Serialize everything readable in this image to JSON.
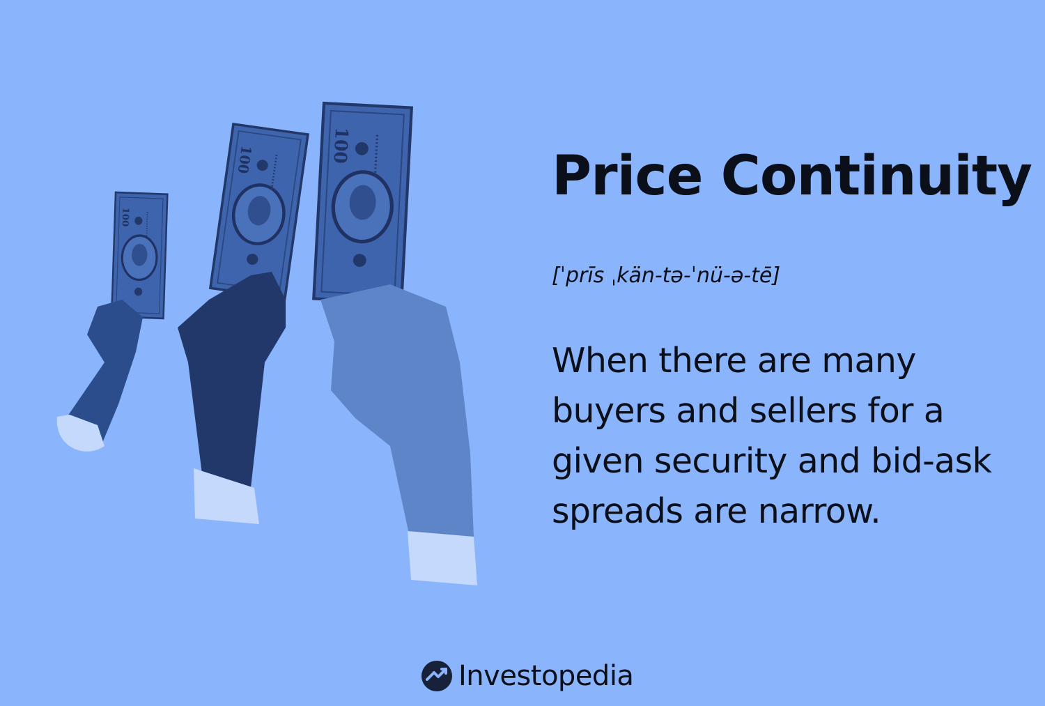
{
  "title": "Price Continuity",
  "pronunciation": "[ˈprīs ˌkän-tə-ˈnü-ə-tē]",
  "definition": "When there are many buyers and sellers for a given security and bid-ask spreads are narrow.",
  "brand": {
    "name": "Investopedia",
    "icon": "investopedia-logo-icon"
  },
  "illustration": {
    "icon": "hands-holding-banknotes-icon",
    "banknote_label": "100"
  },
  "colors": {
    "background": "#8ab4fb",
    "text": "#0b0f1a",
    "bill": "#3e64ad",
    "bill_dark": "#23386a",
    "hand_dark": "#23386a",
    "hand_mid": "#2c4d8c",
    "hand_light": "#5f85c9",
    "cuff": "#c5d9fc"
  }
}
